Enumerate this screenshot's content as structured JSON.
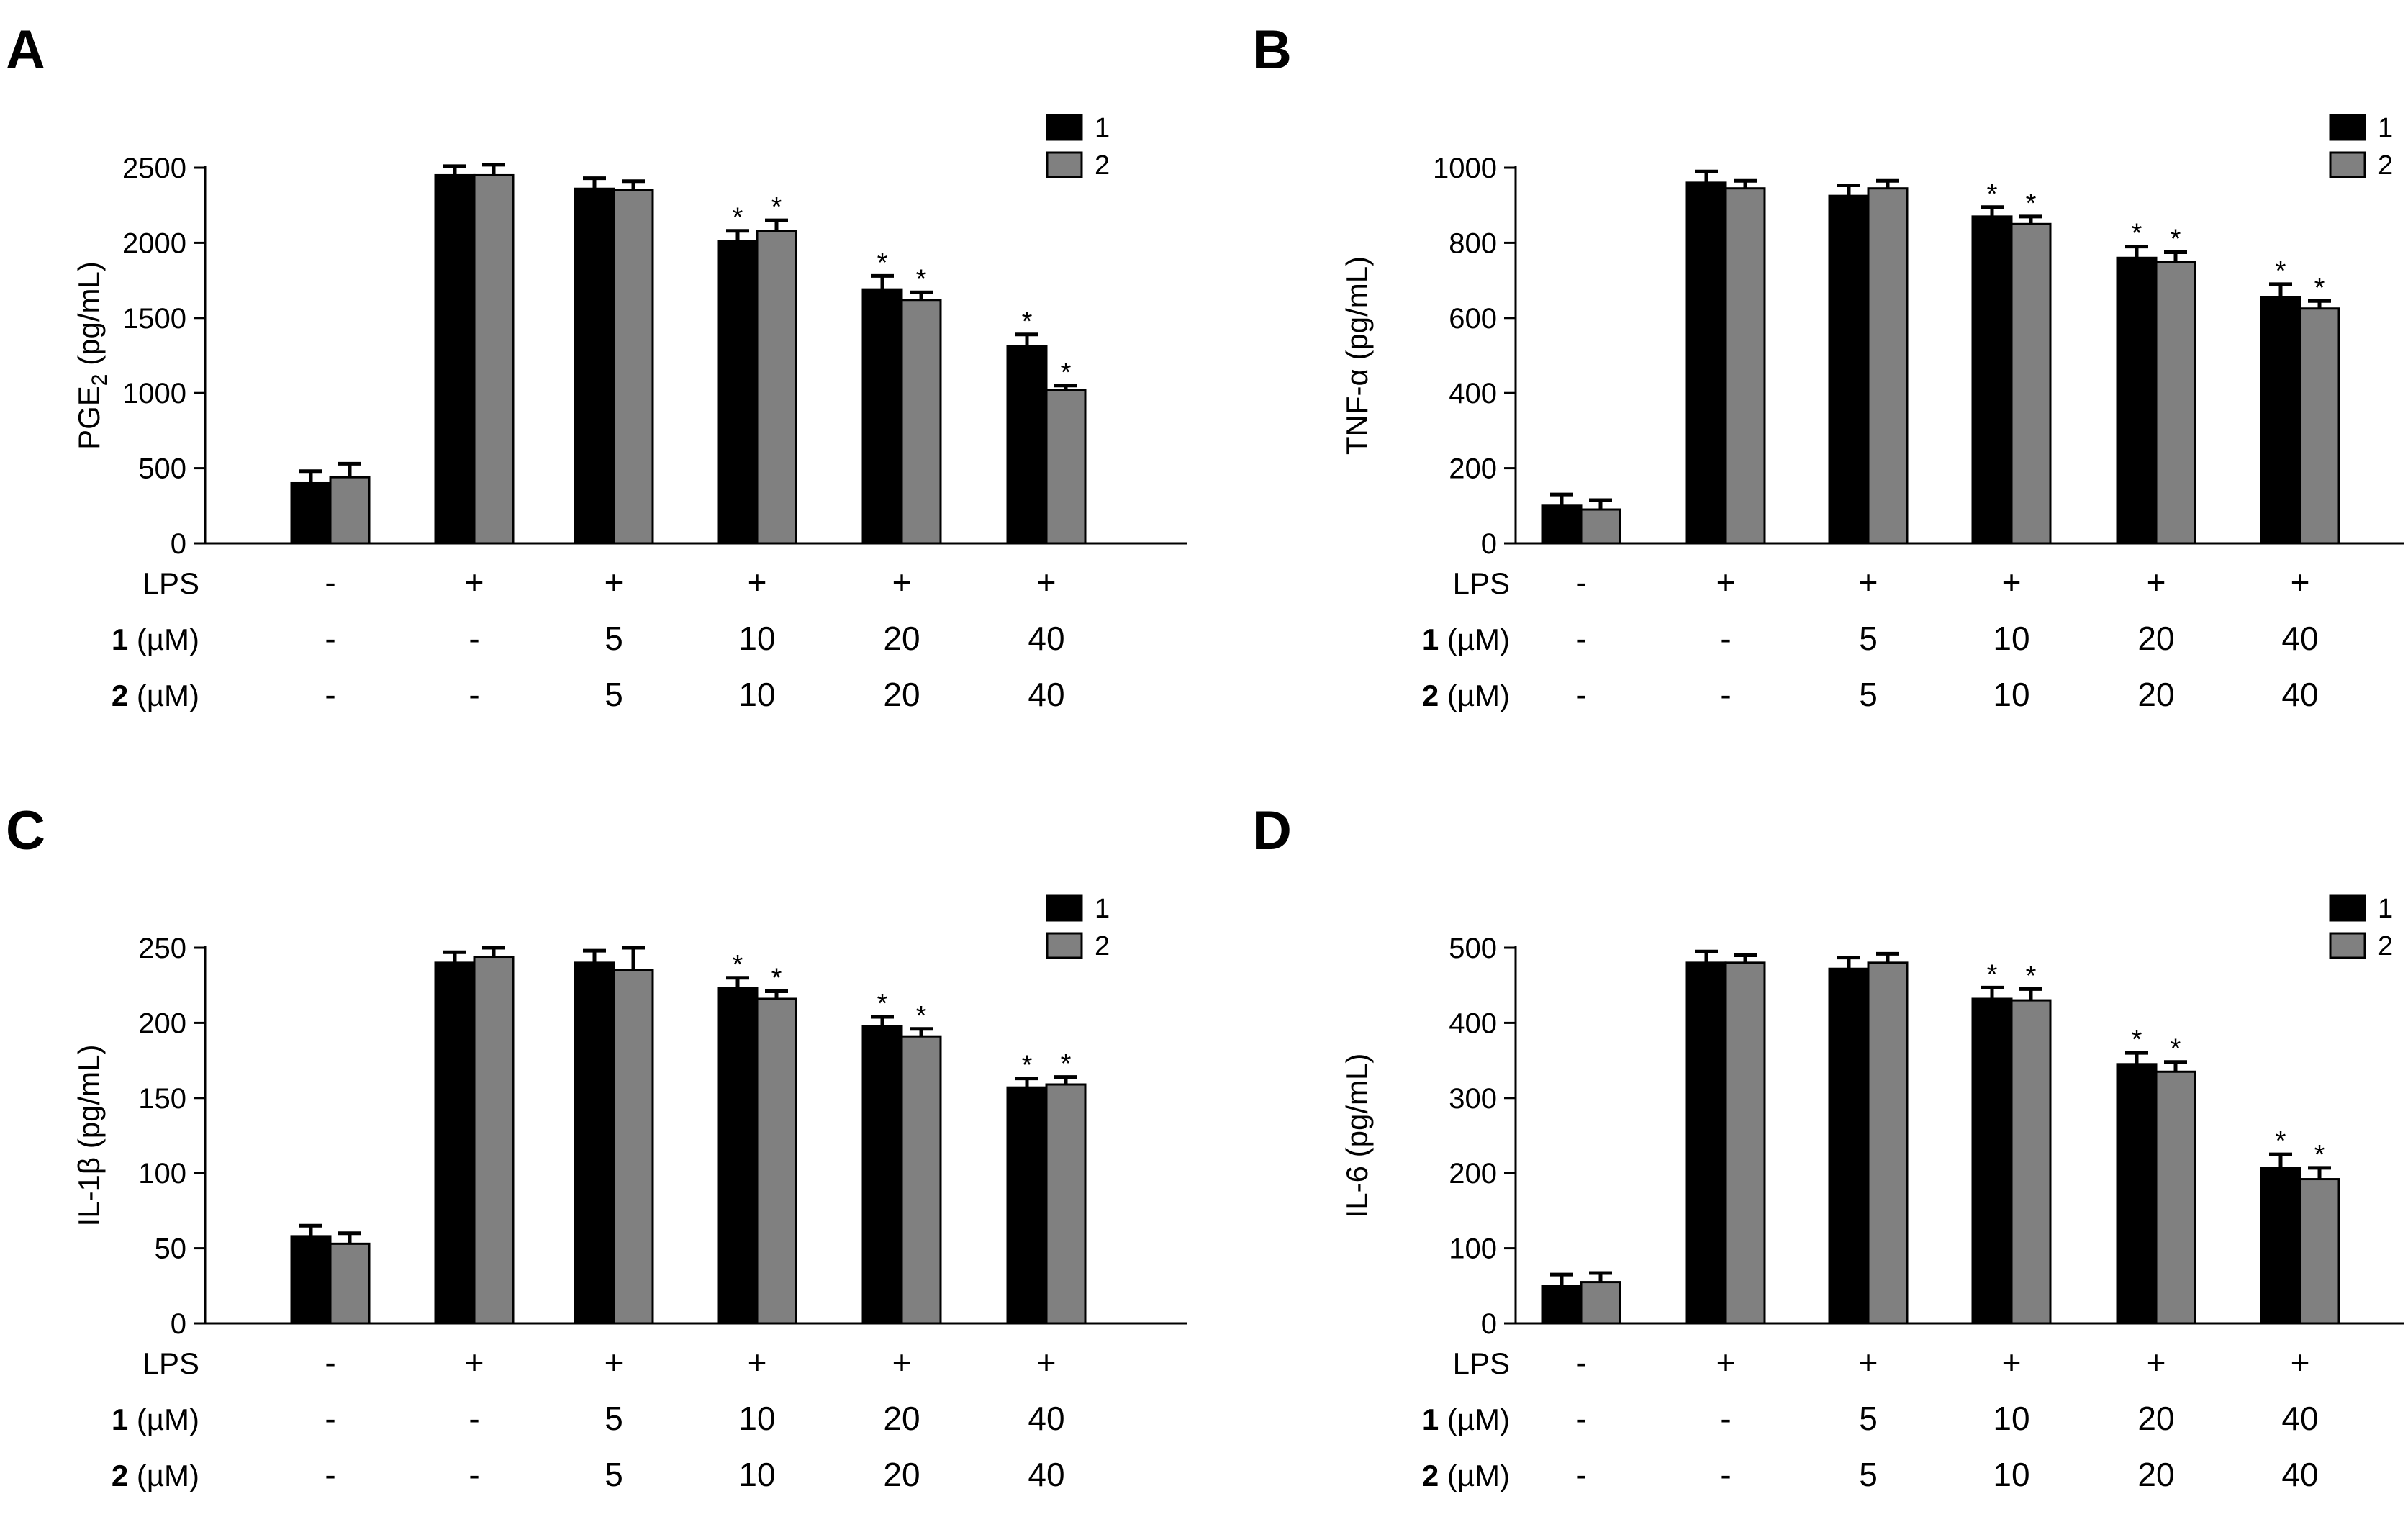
{
  "colors": {
    "series_1": "#000000",
    "series_2": "#808080",
    "axis": "#000000",
    "background": "#ffffff"
  },
  "treatment_rows": [
    {
      "label_bold": "",
      "label_rest": "LPS",
      "values": [
        "-",
        "+",
        "+",
        "+",
        "+",
        "+"
      ]
    },
    {
      "label_bold": "1",
      "label_rest": " (µM)",
      "values": [
        "-",
        "-",
        "5",
        "10",
        "20",
        "40"
      ]
    },
    {
      "label_bold": "2",
      "label_rest": " (µM)",
      "values": [
        "-",
        "-",
        "5",
        "10",
        "20",
        "40"
      ]
    }
  ],
  "chart_data": [
    {
      "panel": "A",
      "type": "bar",
      "ylabel": "PGE",
      "ylabel_sub": "2",
      "ylabel_unit": " (pg/mL)",
      "ylim": [
        0,
        2500
      ],
      "yticks": [
        0,
        500,
        1000,
        1500,
        2000,
        2500
      ],
      "legend": [
        "1",
        "2"
      ],
      "legend_position": "top-right",
      "groups": 6,
      "series": [
        {
          "name": "1",
          "values": [
            400,
            2450,
            2360,
            2010,
            1690,
            1310
          ],
          "errors": [
            80,
            60,
            70,
            70,
            90,
            80
          ],
          "significant": [
            false,
            false,
            false,
            true,
            true,
            true
          ]
        },
        {
          "name": "2",
          "values": [
            440,
            2450,
            2350,
            2080,
            1620,
            1020
          ],
          "errors": [
            90,
            70,
            60,
            70,
            50,
            30
          ],
          "significant": [
            false,
            false,
            false,
            true,
            true,
            true
          ]
        }
      ]
    },
    {
      "panel": "B",
      "type": "bar",
      "ylabel": "TNF-α",
      "ylabel_sub": "",
      "ylabel_unit": " (pg/mL)",
      "ylim": [
        0,
        1000
      ],
      "yticks": [
        0,
        200,
        400,
        600,
        800,
        1000
      ],
      "legend": [
        "1",
        "2"
      ],
      "legend_position": "top-right",
      "groups": 6,
      "series": [
        {
          "name": "1",
          "values": [
            100,
            960,
            925,
            870,
            760,
            655
          ],
          "errors": [
            30,
            30,
            28,
            25,
            30,
            35
          ],
          "significant": [
            false,
            false,
            false,
            true,
            true,
            true
          ]
        },
        {
          "name": "2",
          "values": [
            90,
            945,
            945,
            850,
            750,
            625
          ],
          "errors": [
            25,
            20,
            20,
            20,
            25,
            20
          ],
          "significant": [
            false,
            false,
            false,
            true,
            true,
            true
          ]
        }
      ]
    },
    {
      "panel": "C",
      "type": "bar",
      "ylabel": "IL-1β",
      "ylabel_sub": "",
      "ylabel_unit": " (pg/mL)",
      "ylim": [
        0,
        250
      ],
      "yticks": [
        0,
        50,
        100,
        150,
        200,
        250
      ],
      "legend": [
        "1",
        "2"
      ],
      "legend_position": "top-right",
      "groups": 6,
      "series": [
        {
          "name": "1",
          "values": [
            58,
            240,
            240,
            223,
            198,
            157
          ],
          "errors": [
            7,
            7,
            8,
            7,
            6,
            6
          ],
          "significant": [
            false,
            false,
            false,
            true,
            true,
            true
          ]
        },
        {
          "name": "2",
          "values": [
            53,
            244,
            235,
            216,
            191,
            159
          ],
          "errors": [
            7,
            6,
            15,
            5,
            5,
            5
          ],
          "significant": [
            false,
            false,
            false,
            true,
            true,
            true
          ]
        }
      ]
    },
    {
      "panel": "D",
      "type": "bar",
      "ylabel": "IL-6",
      "ylabel_sub": "",
      "ylabel_unit": " (pg/mL)",
      "ylim": [
        0,
        500
      ],
      "yticks": [
        0,
        100,
        200,
        300,
        400,
        500
      ],
      "legend": [
        "1",
        "2"
      ],
      "legend_position": "top-right",
      "groups": 6,
      "series": [
        {
          "name": "1",
          "values": [
            50,
            480,
            472,
            432,
            345,
            207
          ],
          "errors": [
            15,
            15,
            15,
            15,
            15,
            18
          ],
          "significant": [
            false,
            false,
            false,
            true,
            true,
            true
          ]
        },
        {
          "name": "2",
          "values": [
            55,
            480,
            480,
            430,
            335,
            192
          ],
          "errors": [
            12,
            10,
            12,
            15,
            13,
            15
          ],
          "significant": [
            false,
            false,
            false,
            true,
            true,
            true
          ]
        }
      ]
    }
  ]
}
